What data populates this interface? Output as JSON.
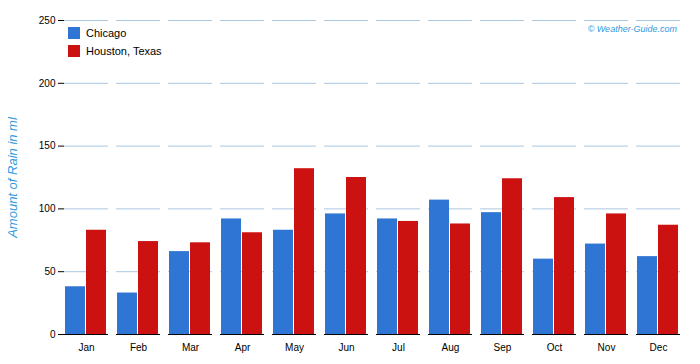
{
  "chart_data": {
    "type": "bar",
    "categories": [
      "Jan",
      "Feb",
      "Mar",
      "Apr",
      "May",
      "Jun",
      "Jul",
      "Aug",
      "Sep",
      "Oct",
      "Nov",
      "Dec"
    ],
    "series": [
      {
        "name": "Chicago",
        "color": "#2e75d4",
        "values": [
          38,
          33,
          66,
          92,
          83,
          96,
          92,
          107,
          97,
          60,
          72,
          62
        ]
      },
      {
        "name": "Houston, Texas",
        "color": "#cc1111",
        "values": [
          83,
          74,
          73,
          81,
          132,
          125,
          90,
          88,
          124,
          109,
          96,
          87
        ]
      }
    ],
    "y_label": "Amount of Rain in ml",
    "ylim": [
      0,
      250
    ],
    "yticks": [
      0,
      50,
      100,
      150,
      200,
      250
    ],
    "grid": true,
    "legend": "upper left",
    "annotations": [
      "© Weather-Guide.com"
    ]
  }
}
